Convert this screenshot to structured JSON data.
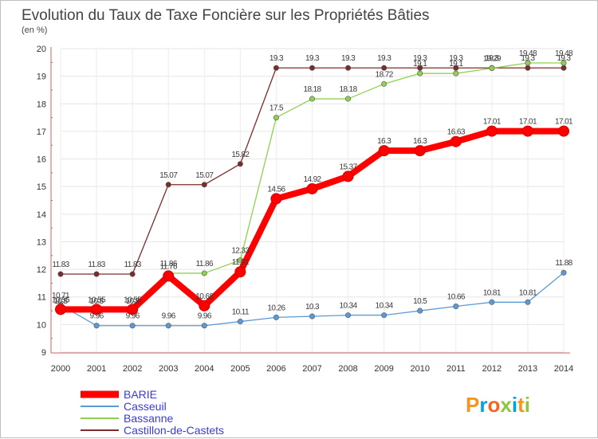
{
  "chart_data": {
    "type": "line",
    "title": "Evolution du Taux de Taxe Foncière sur les Propriétés Bâties",
    "ylabel": "(en %)",
    "xlabel": "",
    "ylim": [
      9,
      20
    ],
    "yticks": [
      "9",
      "10",
      "11",
      "12",
      "13",
      "14",
      "15",
      "16",
      "17",
      "18",
      "19",
      "20"
    ],
    "categories": [
      "2000",
      "2001",
      "2002",
      "2003",
      "2004",
      "2005",
      "2006",
      "2007",
      "2008",
      "2009",
      "2010",
      "2011",
      "2012",
      "2013",
      "2014"
    ],
    "series": [
      {
        "name": "BARIE",
        "color": "#ff0000",
        "values": [
          10.55,
          10.55,
          10.55,
          11.76,
          10.68,
          11.91,
          14.56,
          14.92,
          15.37,
          16.3,
          16.3,
          16.63,
          17.01,
          17.01,
          17.01
        ],
        "labels": [
          "10.55",
          "10.55",
          "10.55",
          "11.76",
          "10.68",
          "11.91",
          "14.56",
          "14.92",
          "15.37",
          "16.3",
          "16.3",
          "16.63",
          "17.01",
          "17.01",
          "17.01"
        ]
      },
      {
        "name": "Casseuil",
        "color": "#5b9bd5",
        "values": [
          10.71,
          9.96,
          9.96,
          9.96,
          9.96,
          10.11,
          10.26,
          10.3,
          10.34,
          10.34,
          10.5,
          10.66,
          10.81,
          10.81,
          11.88
        ],
        "labels": [
          "10.71",
          "9.96",
          "9.96",
          "9.96",
          "9.96",
          "10.11",
          "10.26",
          "10.3",
          "10.34",
          "10.34",
          "10.5",
          "10.66",
          "10.81",
          "10.81",
          "11.88"
        ]
      },
      {
        "name": "Bassanne",
        "color": "#8fd14f",
        "values": [
          10.5,
          10.5,
          10.5,
          11.86,
          11.86,
          12.33,
          17.5,
          18.18,
          18.18,
          18.72,
          19.1,
          19.1,
          19.29,
          19.48,
          19.48
        ],
        "labels": [
          "10.5",
          "10.5",
          "10.5",
          "11.86",
          "11.86",
          "12.33",
          "17.5",
          "18.18",
          "18.18",
          "18.72",
          "19.1",
          "19.1",
          "19.29",
          "19.48",
          "19.48"
        ]
      },
      {
        "name": "Castillon-de-Castets",
        "color": "#7b2c2c",
        "values": [
          11.83,
          11.83,
          11.83,
          15.07,
          15.07,
          15.82,
          19.3,
          19.3,
          19.3,
          19.3,
          19.3,
          19.3,
          19.3,
          19.3,
          19.3
        ],
        "labels": [
          "11.83",
          "11.83",
          "11.83",
          "15.07",
          "15.07",
          "15.82",
          "19.3",
          "19.3",
          "19.3",
          "19.3",
          "19.3",
          "19.3",
          "19.3",
          "19.3",
          "19.3"
        ]
      }
    ],
    "legend": "bottom-left"
  },
  "brand": {
    "letters": [
      "P",
      "r",
      "o",
      "x",
      "i",
      "t",
      "i"
    ],
    "colors": [
      "#f7941d",
      "#00a3e0",
      "#f26522",
      "#8dc63f",
      "#00a3e0",
      "#f7941d",
      "#8dc63f"
    ]
  }
}
